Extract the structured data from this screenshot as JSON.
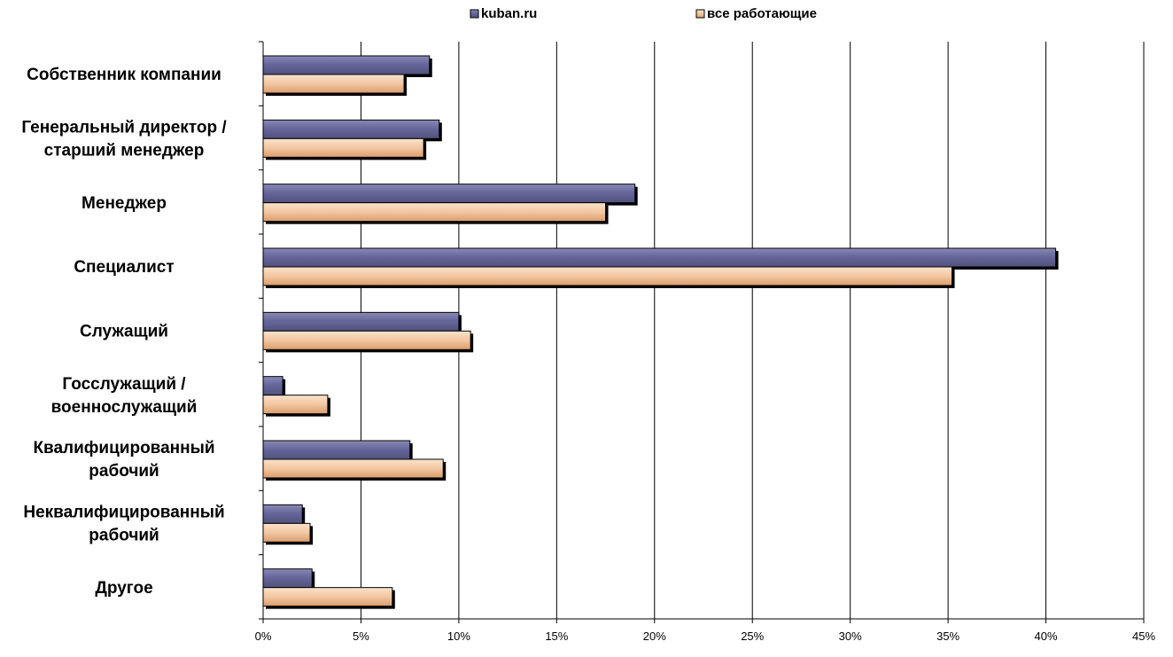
{
  "chart_data": {
    "type": "bar",
    "orientation": "horizontal",
    "categories": [
      [
        "Собственник компании"
      ],
      [
        "Генеральный директор /",
        "старший менеджер"
      ],
      [
        "Менеджер"
      ],
      [
        "Специалист"
      ],
      [
        "Служащий"
      ],
      [
        "Госслужащий /",
        "военнослужащий"
      ],
      [
        "Квалифицированный",
        "рабочий"
      ],
      [
        "Неквалифицированный",
        "рабочий"
      ],
      [
        "Другое"
      ]
    ],
    "series": [
      {
        "name": "kuban.ru",
        "color": "#666699",
        "values": [
          8.5,
          9.0,
          19.0,
          40.5,
          10.0,
          1.0,
          7.5,
          2.0,
          2.5
        ]
      },
      {
        "name": "все работающие",
        "color": "#F2C6A0",
        "values": [
          7.2,
          8.2,
          17.5,
          35.2,
          10.6,
          3.3,
          9.2,
          2.4,
          6.6
        ]
      }
    ],
    "xlim": [
      0,
      45
    ],
    "xticks": [
      "0%",
      "5%",
      "10%",
      "15%",
      "20%",
      "25%",
      "30%",
      "35%",
      "40%",
      "45%"
    ],
    "grid": "vertical",
    "legend": "top-center"
  }
}
